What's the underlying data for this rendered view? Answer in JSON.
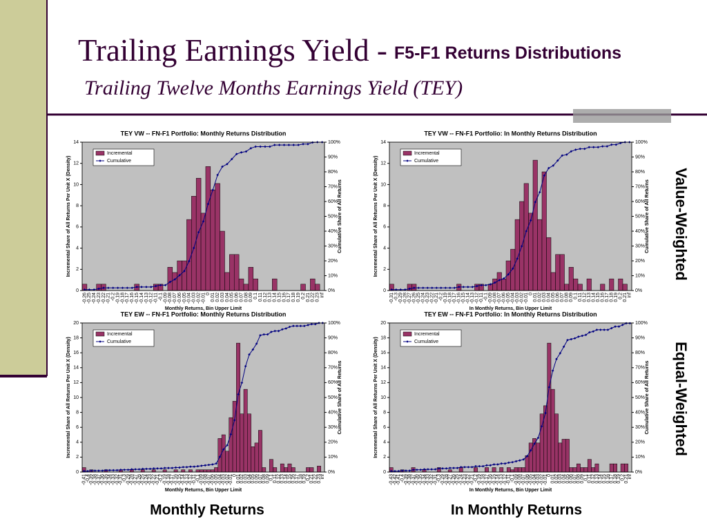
{
  "slide": {
    "title": "Trailing Earnings Yield -",
    "title_suffix": "F5-F1 Returns Distributions",
    "subtitle": "Trailing Twelve Months Earnings Yield (TEY)",
    "side_labels": [
      "Value-Weighted",
      "Equal-Weighted"
    ],
    "bottom_labels": [
      "Monthly Returns",
      "In Monthly Returns"
    ]
  },
  "chart_data": [
    {
      "type": "bar",
      "title": "TEY VW -- FN-F1 Portfolio: Monthly Returns Distribution",
      "x_label": "Monthly Returns, Bin Upper Limit",
      "y_label": "Incremental Share of All Returns Per Unit X (Density)",
      "y2_label": "Cumulative Share of All Returns",
      "legend": "upper left",
      "categories": [
        "-0.26",
        "-0.25",
        "-0.24",
        "-0.23",
        "-0.22",
        "-0.21",
        "-0.2",
        "-0.19",
        "-0.18",
        "-0.17",
        "-0.16",
        "-0.15",
        "-0.14",
        "-0.13",
        "-0.12",
        "-0.11",
        "-0.1",
        "-0.09",
        "-0.08",
        "-0.07",
        "-0.06",
        "-0.05",
        "-0.04",
        "-0.03",
        "-0.02",
        "-0.01",
        "0",
        "0.01",
        "0.02",
        "0.03",
        "0.04",
        "0.05",
        "0.06",
        "0.07",
        "0.08",
        "0.09",
        "0.1",
        "0.11",
        "0.12",
        "0.13",
        "0.14",
        "0.15",
        "0.16",
        "0.17",
        "0.18",
        "0.19",
        "0.2",
        "0.21",
        "0.22",
        "0.23",
        "inf"
      ],
      "series": [
        {
          "name": "Incremental",
          "color": "#993366",
          "values": [
            0.6,
            0,
            0,
            0.6,
            0.6,
            0,
            0,
            0,
            0,
            0,
            0,
            0.6,
            0,
            0,
            0,
            0.6,
            0.6,
            0,
            2.2,
            1.7,
            2.8,
            2.8,
            6.7,
            8.9,
            10.6,
            7.3,
            11.7,
            9.5,
            10.1,
            5.6,
            1.7,
            3.4,
            3.4,
            1.1,
            0.6,
            2.2,
            1.1,
            0,
            0,
            0,
            1.1,
            0,
            0,
            0,
            0,
            0,
            0.6,
            0,
            1.1,
            0.6,
            0
          ]
        },
        {
          "name": "Cumulative",
          "color": "#000080",
          "type": "line",
          "axis": "y2",
          "values": [
            0.6,
            0.6,
            0.6,
            1.2,
            1.8,
            1.8,
            1.8,
            1.8,
            1.8,
            1.8,
            1.8,
            2.4,
            2.4,
            2.4,
            2.4,
            3.0,
            3.6,
            3.6,
            5.8,
            7.5,
            10.3,
            13.1,
            19.8,
            28.7,
            39.3,
            46.6,
            58.3,
            67.8,
            77.9,
            83.5,
            85.2,
            88.6,
            92.0,
            93.1,
            93.7,
            95.9,
            97.0,
            97.0,
            97.0,
            97.0,
            98.1,
            98.1,
            98.1,
            98.1,
            98.1,
            98.1,
            98.7,
            98.7,
            99.8,
            100,
            100
          ]
        }
      ],
      "ylim": [
        0,
        14
      ],
      "yticks": [
        0,
        2,
        4,
        6,
        8,
        10,
        12,
        14
      ],
      "y2lim": [
        0,
        100
      ],
      "y2ticks": [
        {
          "value": 0,
          "label": "0%"
        },
        {
          "value": 10,
          "label": "10%"
        },
        {
          "value": 20,
          "label": "20%"
        },
        {
          "value": 30,
          "label": "30%"
        },
        {
          "value": 40,
          "label": "40%"
        },
        {
          "value": 50,
          "label": "50%"
        },
        {
          "value": 60,
          "label": "60%"
        },
        {
          "value": 70,
          "label": "70%"
        },
        {
          "value": 80,
          "label": "80%"
        },
        {
          "value": 90,
          "label": "90%"
        },
        {
          "value": 100,
          "label": "100%"
        }
      ]
    },
    {
      "type": "bar",
      "title": "TEY VW -- FN-F1 Portfolio: In Monthly Returns Distribution",
      "x_label": "In Monthly Returns, Bin Upper Limit",
      "y_label": "Incremental Share of All Returns Per Unit X (Density)",
      "y2_label": "Cumulative Share of All Returns",
      "legend": "upper left",
      "categories": [
        "-0.31",
        "-0.3",
        "-0.29",
        "-0.28",
        "-0.27",
        "-0.26",
        "-0.25",
        "-0.24",
        "-0.23",
        "-0.22",
        "-0.21",
        "-0.2",
        "-0.19",
        "-0.18",
        "-0.17",
        "-0.16",
        "-0.15",
        "-0.14",
        "-0.13",
        "-0.12",
        "-0.11",
        "-0.1",
        "-0.09",
        "-0.08",
        "-0.07",
        "-0.06",
        "-0.05",
        "-0.04",
        "-0.03",
        "-0.02",
        "-0.01",
        "0",
        "0.01",
        "0.02",
        "0.03",
        "0.04",
        "0.05",
        "0.06",
        "0.07",
        "0.08",
        "0.09",
        "0.1",
        "0.11",
        "0.12",
        "0.13",
        "0.14",
        "0.15",
        "0.16",
        "0.17",
        "0.18",
        "0.19",
        "0.2",
        "0.21",
        "inf"
      ],
      "series": [
        {
          "name": "Incremental",
          "color": "#993366",
          "values": [
            0.6,
            0,
            0,
            0,
            0.6,
            0.6,
            0,
            0,
            0,
            0,
            0,
            0,
            0,
            0,
            0,
            0.6,
            0,
            0,
            0,
            0.6,
            0.6,
            0,
            0.6,
            1.1,
            1.7,
            1.1,
            2.8,
            3.9,
            6.7,
            8.4,
            10.1,
            7.3,
            12.3,
            6.7,
            11.2,
            5.0,
            1.7,
            3.4,
            3.4,
            0.6,
            2.2,
            1.1,
            0.6,
            0,
            1.1,
            0,
            0,
            0.6,
            0,
            1.1,
            0,
            1.1,
            0.6,
            0
          ]
        },
        {
          "name": "Cumulative",
          "color": "#000080",
          "type": "line",
          "axis": "y2",
          "values": [
            0.6,
            0.6,
            0.6,
            0.6,
            1.2,
            1.8,
            1.8,
            1.8,
            1.8,
            1.8,
            1.8,
            1.8,
            1.8,
            1.8,
            1.8,
            2.4,
            2.4,
            2.4,
            2.4,
            3.0,
            3.6,
            3.6,
            4.2,
            5.3,
            7.0,
            8.1,
            10.9,
            14.8,
            21.5,
            29.9,
            40.0,
            47.3,
            59.6,
            66.3,
            77.5,
            82.5,
            84.2,
            87.6,
            91.0,
            91.6,
            93.8,
            94.9,
            95.5,
            95.5,
            96.6,
            96.6,
            96.6,
            97.2,
            97.2,
            98.3,
            98.3,
            99.4,
            100,
            100
          ]
        }
      ],
      "ylim": [
        0,
        14
      ],
      "yticks": [
        0,
        2,
        4,
        6,
        8,
        10,
        12,
        14
      ],
      "y2lim": [
        0,
        100
      ],
      "y2ticks": [
        {
          "value": 0,
          "label": "0%"
        },
        {
          "value": 10,
          "label": "10%"
        },
        {
          "value": 20,
          "label": "20%"
        },
        {
          "value": 30,
          "label": "30%"
        },
        {
          "value": 40,
          "label": "40%"
        },
        {
          "value": 50,
          "label": "50%"
        },
        {
          "value": 60,
          "label": "60%"
        },
        {
          "value": 70,
          "label": "70%"
        },
        {
          "value": 80,
          "label": "80%"
        },
        {
          "value": 90,
          "label": "90%"
        },
        {
          "value": 100,
          "label": "100%"
        }
      ]
    },
    {
      "type": "bar",
      "title": "TEY EW -- FN-F1 Portfolio: Monthly Returns Distribution",
      "x_label": "Monthly Returns, Bin Upper Limit",
      "y_label": "Incremental Share of All Returns Per Unit X (Density)",
      "y2_label": "Cumulative Share of All Returns",
      "legend": "upper left",
      "categories": [
        "-0.41",
        "-0.4",
        "-0.39",
        "-0.38",
        "-0.37",
        "-0.36",
        "-0.35",
        "-0.34",
        "-0.33",
        "-0.32",
        "-0.31",
        "-0.3",
        "-0.29",
        "-0.28",
        "-0.27",
        "-0.26",
        "-0.25",
        "-0.24",
        "-0.23",
        "-0.22",
        "-0.21",
        "-0.2",
        "-0.19",
        "-0.18",
        "-0.17",
        "-0.16",
        "-0.15",
        "-0.14",
        "-0.13",
        "-0.12",
        "-0.11",
        "-0.1",
        "-0.09",
        "-0.08",
        "-0.07",
        "-0.06",
        "-0.05",
        "-0.04",
        "-0.03",
        "-0.02",
        "-0.01",
        "0",
        "0.01",
        "0.02",
        "0.03",
        "0.04",
        "0.05",
        "0.06",
        "0.07",
        "0.08",
        "0.09",
        "0.1",
        "0.11",
        "0.12",
        "0.13",
        "0.14",
        "0.15",
        "0.16",
        "0.17",
        "0.18",
        "0.19",
        "0.2",
        "0.21",
        "0.22",
        "0.23",
        "inf"
      ],
      "series": [
        {
          "name": "Incremental",
          "color": "#993366",
          "values": [
            0.6,
            0,
            0.3,
            0,
            0,
            0,
            0.3,
            0,
            0,
            0,
            0.3,
            0,
            0,
            0.3,
            0,
            0,
            0.3,
            0,
            0,
            0.3,
            0,
            0,
            0.3,
            0,
            0,
            0.3,
            0,
            0.3,
            0,
            0.3,
            0,
            0.3,
            0.3,
            0.3,
            0.3,
            0.3,
            0.6,
            4.5,
            5.0,
            2.8,
            7.3,
            9.5,
            17.3,
            7.8,
            11.1,
            7.8,
            3.4,
            3.9,
            5.6,
            0.6,
            0,
            1.7,
            0.6,
            0,
            1.1,
            0.6,
            1.1,
            0.6,
            0,
            0,
            0,
            0.6,
            0.6,
            0,
            0.8,
            0
          ]
        },
        {
          "name": "Cumulative",
          "color": "#000080",
          "type": "line",
          "axis": "y2",
          "values": [
            0.6,
            0.6,
            0.9,
            0.9,
            0.9,
            0.9,
            1.2,
            1.2,
            1.2,
            1.2,
            1.5,
            1.5,
            1.5,
            1.8,
            1.8,
            1.8,
            2.1,
            2.1,
            2.1,
            2.4,
            2.4,
            2.4,
            2.7,
            2.7,
            2.7,
            3.0,
            3.0,
            3.3,
            3.3,
            3.6,
            3.6,
            3.9,
            4.2,
            4.5,
            4.8,
            5.1,
            5.7,
            10.2,
            15.2,
            18.0,
            25.3,
            34.8,
            52.1,
            59.9,
            71.0,
            78.8,
            82.2,
            86.1,
            91.7,
            92.3,
            92.3,
            94.0,
            94.6,
            94.6,
            95.7,
            96.3,
            97.4,
            98.0,
            98.0,
            98.0,
            98.0,
            98.6,
            99.2,
            99.2,
            100,
            100
          ]
        }
      ],
      "ylim": [
        0,
        20
      ],
      "yticks": [
        0,
        2,
        4,
        6,
        8,
        10,
        12,
        14,
        16,
        18,
        20
      ],
      "y2lim": [
        0,
        100
      ],
      "y2ticks": [
        {
          "value": 0,
          "label": "0%"
        },
        {
          "value": 10,
          "label": "10%"
        },
        {
          "value": 20,
          "label": "20%"
        },
        {
          "value": 30,
          "label": "30%"
        },
        {
          "value": 40,
          "label": "40%"
        },
        {
          "value": 50,
          "label": "50%"
        },
        {
          "value": 60,
          "label": "60%"
        },
        {
          "value": 70,
          "label": "70%"
        },
        {
          "value": 80,
          "label": "80%"
        },
        {
          "value": 90,
          "label": "90%"
        },
        {
          "value": 100,
          "label": "100%"
        }
      ]
    },
    {
      "type": "bar",
      "title": "TEY EW -- FN-F1 Portfolio: In Monthly Returns Distribution",
      "x_label": "In Monthly Returns, Bin Upper Limit",
      "y_label": "Incremental Share of All Returns Per Unit X (Density)",
      "y2_label": "Cumulative Share of All Returns",
      "legend": "upper left",
      "categories": [
        "-0.43",
        "-0.42",
        "-0.41",
        "-0.4",
        "-0.39",
        "-0.38",
        "-0.37",
        "-0.36",
        "-0.35",
        "-0.34",
        "-0.33",
        "-0.32",
        "-0.31",
        "-0.3",
        "-0.29",
        "-0.28",
        "-0.27",
        "-0.26",
        "-0.25",
        "-0.24",
        "-0.23",
        "-0.22",
        "-0.21",
        "-0.2",
        "-0.19",
        "-0.18",
        "-0.17",
        "-0.16",
        "-0.15",
        "-0.14",
        "-0.13",
        "-0.12",
        "-0.11",
        "-0.1",
        "-0.09",
        "-0.08",
        "-0.07",
        "-0.06",
        "-0.05",
        "-0.04",
        "-0.03",
        "-0.02",
        "-0.01",
        "0",
        "0.01",
        "0.02",
        "0.03",
        "0.04",
        "0.05",
        "0.06",
        "0.07",
        "0.08",
        "0.09",
        "0.1",
        "0.11",
        "0.12",
        "0.13",
        "0.14",
        "0.15",
        "0.16",
        "0.17",
        "0.18",
        "0.19",
        "0.2",
        "0.21",
        "inf"
      ],
      "series": [
        {
          "name": "Incremental",
          "color": "#993366",
          "values": [
            0.6,
            0,
            0,
            0.3,
            0,
            0,
            0.6,
            0,
            0,
            0.3,
            0,
            0,
            0,
            0.6,
            0,
            0,
            0.3,
            0,
            0,
            0.6,
            0,
            0,
            0,
            0.6,
            0,
            0,
            0.6,
            0,
            0.6,
            0,
            0.6,
            0,
            0.6,
            0.3,
            0.6,
            0.6,
            0.6,
            2.2,
            3.9,
            4.5,
            3.9,
            7.8,
            8.9,
            17.3,
            11.1,
            7.8,
            3.9,
            4.4,
            4.4,
            0.6,
            0.6,
            1.1,
            0.6,
            0.6,
            1.7,
            0.6,
            1.1,
            0,
            0,
            0,
            1.1,
            1.1,
            0,
            1.1,
            1.1,
            0
          ]
        },
        {
          "name": "Cumulative",
          "color": "#000080",
          "type": "line",
          "axis": "y2",
          "values": [
            0.6,
            0.6,
            0.6,
            0.9,
            0.9,
            0.9,
            1.5,
            1.5,
            1.5,
            1.8,
            1.8,
            1.8,
            1.8,
            2.4,
            2.4,
            2.4,
            2.7,
            2.7,
            2.7,
            3.3,
            3.3,
            3.3,
            3.3,
            3.9,
            3.9,
            3.9,
            4.5,
            4.5,
            5.1,
            5.1,
            5.7,
            5.7,
            6.3,
            6.6,
            7.2,
            7.8,
            8.4,
            10.6,
            14.5,
            19.0,
            22.9,
            30.7,
            39.6,
            56.9,
            68.0,
            75.8,
            79.7,
            84.1,
            88.5,
            89.1,
            89.7,
            90.8,
            91.4,
            92.0,
            93.7,
            94.3,
            95.4,
            95.4,
            95.4,
            95.4,
            96.5,
            97.6,
            97.6,
            98.7,
            99.8,
            99.8
          ]
        }
      ],
      "ylim": [
        0,
        20
      ],
      "yticks": [
        0,
        2,
        4,
        6,
        8,
        10,
        12,
        14,
        16,
        18,
        20
      ],
      "y2lim": [
        0,
        100
      ],
      "y2ticks": [
        {
          "value": 0,
          "label": "0%"
        },
        {
          "value": 10,
          "label": "10%"
        },
        {
          "value": 20,
          "label": "20%"
        },
        {
          "value": 30,
          "label": "30%"
        },
        {
          "value": 40,
          "label": "40%"
        },
        {
          "value": 50,
          "label": "50%"
        },
        {
          "value": 60,
          "label": "60%"
        },
        {
          "value": 70,
          "label": "70%"
        },
        {
          "value": 80,
          "label": "80%"
        },
        {
          "value": 90,
          "label": "90%"
        },
        {
          "value": 100,
          "label": "100%"
        }
      ]
    }
  ]
}
